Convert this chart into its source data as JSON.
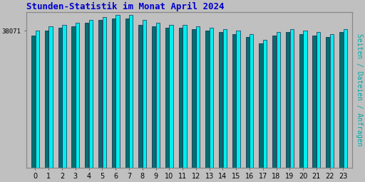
{
  "title": "Stunden-Statistik im Monat April 2024",
  "ylabel": "Seiten / Dateien / Anfragen",
  "xlabel_values": [
    0,
    1,
    2,
    3,
    4,
    5,
    6,
    7,
    8,
    9,
    10,
    11,
    12,
    13,
    14,
    15,
    16,
    17,
    18,
    19,
    20,
    21,
    22,
    23
  ],
  "ytick_label": "38071",
  "bar_values_cyan": [
    88,
    91,
    92,
    93,
    95,
    97,
    98,
    98,
    95,
    93,
    92,
    92,
    91,
    90,
    89,
    88,
    86,
    82,
    87,
    89,
    88,
    87,
    86,
    89
  ],
  "bar_values_dark": [
    85,
    88,
    90,
    91,
    93,
    95,
    96,
    96,
    92,
    91,
    90,
    90,
    89,
    88,
    87,
    86,
    84,
    80,
    85,
    87,
    86,
    85,
    84,
    87
  ],
  "bar_color_cyan": "#00EEEE",
  "bar_color_dark": "#007070",
  "bar_edge_color": "#000033",
  "background_color": "#C0C0C0",
  "plot_bg_color": "#C0C0C0",
  "title_color": "#0000CC",
  "ylabel_color": "#00AAAA",
  "title_fontsize": 9,
  "ylabel_fontsize": 7,
  "ylim_min": 0,
  "ylim_max": 100,
  "ytick_pos": 88
}
